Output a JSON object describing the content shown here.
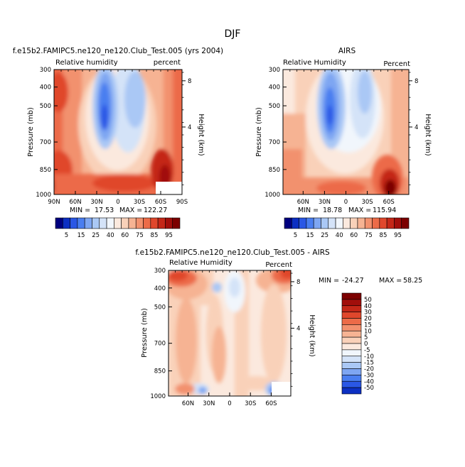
{
  "page_title": "DJF",
  "chart_data": [
    {
      "type": "heatmap",
      "title": "f.e15b2.FAMIPC5.ne120_ne120.Club_Test.005 (yrs 2004)",
      "field_label": "Relative humidity",
      "units_label": "percent",
      "ylabel": "Pressure (mb)",
      "y2label": "Height (km)",
      "y_ticks": [
        "300",
        "400",
        "500",
        "700",
        "850",
        "1000"
      ],
      "y2_ticks": [
        "8",
        "4"
      ],
      "x_ticks": [
        "90N",
        "60N",
        "30N",
        "0",
        "30S",
        "60S",
        "90S"
      ],
      "min_label": "MIN =",
      "min_value": "17.53",
      "max_label": "MAX =",
      "max_value": "122.27",
      "colorbar_labels": [
        "5",
        "15",
        "25",
        "40",
        "60",
        "75",
        "85",
        "95"
      ],
      "colorbar_colors": [
        "#00007f",
        "#0c2fc2",
        "#2a57e5",
        "#4a7ef0",
        "#7ea6f2",
        "#aac8f5",
        "#d4e3f8",
        "#f1f6fc",
        "#fbe9de",
        "#f9d1b9",
        "#f6b393",
        "#f2916e",
        "#ec6b48",
        "#e0472c",
        "#c42718",
        "#a10e0b",
        "#7c0000"
      ],
      "missing_region_lat": "60S to 90S near 1000 mb"
    },
    {
      "type": "heatmap",
      "title": "AIRS",
      "field_label": "Relative Humidity",
      "units_label": "Percent",
      "ylabel": "Pressure (mb)",
      "y2label": "Height (km)",
      "y_ticks": [
        "300",
        "400",
        "500",
        "700",
        "850",
        "1000"
      ],
      "y2_ticks": [
        "8",
        "4"
      ],
      "x_ticks": [
        "60N",
        "30N",
        "0",
        "30S",
        "60S"
      ],
      "min_label": "MIN =",
      "min_value": "18.78",
      "max_label": "MAX =",
      "max_value": "115.94",
      "colorbar_labels": [
        "5",
        "15",
        "25",
        "40",
        "60",
        "75",
        "85",
        "95"
      ],
      "colorbar_colors": [
        "#00007f",
        "#0c2fc2",
        "#2a57e5",
        "#4a7ef0",
        "#7ea6f2",
        "#aac8f5",
        "#d4e3f8",
        "#f1f6fc",
        "#fbe9de",
        "#f9d1b9",
        "#f6b393",
        "#f2916e",
        "#ec6b48",
        "#e0472c",
        "#c42718",
        "#a10e0b",
        "#7c0000"
      ]
    },
    {
      "type": "heatmap",
      "title": "f.e15b2.FAMIPC5.ne120_ne120.Club_Test.005 - AIRS",
      "field_label": "Relative Humidity",
      "units_label": "Percent",
      "ylabel": "Pressure (mb)",
      "y2label": "Height (km)",
      "y_ticks": [
        "300",
        "400",
        "500",
        "700",
        "850",
        "1000"
      ],
      "y2_ticks": [
        "8",
        "4"
      ],
      "x_ticks": [
        "60N",
        "30N",
        "0",
        "30S",
        "60S"
      ],
      "min_label": "MIN =",
      "min_value": "-24.27",
      "max_label": "MAX =",
      "max_value": "58.25",
      "colorbar_labels": [
        "50",
        "40",
        "30",
        "20",
        "15",
        "10",
        "5",
        "0",
        "-5",
        "-10",
        "-15",
        "-20",
        "-30",
        "-40",
        "-50"
      ],
      "colorbar_colors": [
        "#7c0000",
        "#a10e0b",
        "#c42718",
        "#e0472c",
        "#ec6b48",
        "#f2916e",
        "#f6b393",
        "#f9d1b9",
        "#fbe9de",
        "#f1f6fc",
        "#d4e3f8",
        "#aac8f5",
        "#7ea6f2",
        "#4a7ef0",
        "#2a57e5",
        "#0c2fc2"
      ]
    }
  ]
}
